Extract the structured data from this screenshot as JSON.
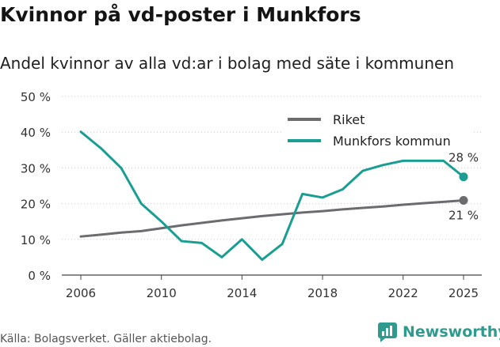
{
  "header": {
    "title": "Kvinnor på vd-poster i Munkfors",
    "subtitle": "Andel kvinnor av alla vd:ar i bolag med säte i kommunen"
  },
  "footer": {
    "source": "Källa: Bolagsverket. Gäller aktiebolag.",
    "brand": "Newsworthy"
  },
  "colors": {
    "riket": "#6b6b70",
    "munkfors": "#1a9e91",
    "grid": "#c8c8c8",
    "brand": "#2f9b8f"
  },
  "chart_data": {
    "type": "line",
    "title": "Kvinnor på vd-poster i Munkfors",
    "subtitle": "Andel kvinnor av alla vd:ar i bolag med säte i kommunen",
    "xlabel": "",
    "ylabel": "",
    "xlim": [
      2006,
      2025
    ],
    "ylim": [
      0,
      50
    ],
    "x_ticks": [
      2006,
      2010,
      2014,
      2018,
      2022,
      2025
    ],
    "y_ticks": [
      0,
      10,
      20,
      30,
      40,
      50
    ],
    "y_tick_labels": [
      "0 %",
      "10 %",
      "20 %",
      "30 %",
      "40 %",
      "50 %"
    ],
    "grid": "horizontal",
    "legend_position": "top-right",
    "x": [
      2006,
      2007,
      2008,
      2009,
      2010,
      2011,
      2012,
      2013,
      2014,
      2015,
      2016,
      2017,
      2018,
      2019,
      2020,
      2021,
      2022,
      2023,
      2024,
      2025
    ],
    "series": [
      {
        "name": "Riket",
        "values": [
          10.8,
          11.3,
          11.9,
          12.3,
          13.1,
          13.9,
          14.6,
          15.3,
          15.9,
          16.5,
          17.0,
          17.5,
          17.9,
          18.4,
          18.8,
          19.2,
          19.7,
          20.1,
          20.5,
          20.9
        ],
        "end_label": "21 %"
      },
      {
        "name": "Munkfors kommun",
        "values": [
          40.1,
          35.5,
          30.0,
          20.0,
          15.0,
          9.5,
          9.0,
          5.0,
          10.0,
          4.3,
          8.7,
          22.7,
          21.7,
          24.0,
          29.2,
          30.8,
          32.0,
          32.0,
          32.0,
          27.5
        ],
        "end_label": "28 %"
      }
    ]
  }
}
